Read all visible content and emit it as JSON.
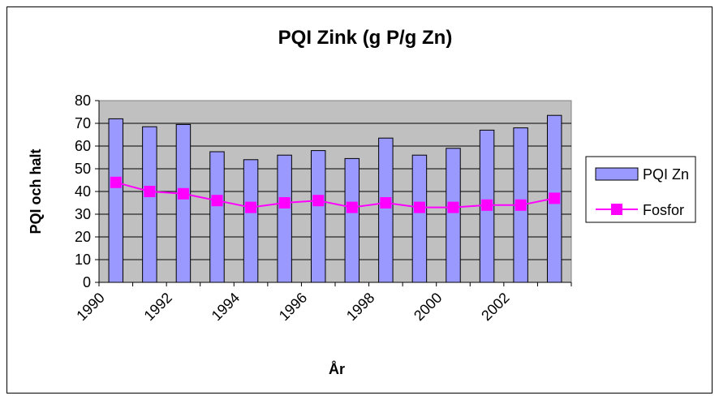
{
  "chart_data": {
    "type": "bar",
    "title": "PQI Zink (g P/g Zn)",
    "xlabel": "År",
    "ylabel": "PQI och halt",
    "ylim": [
      0,
      80
    ],
    "yticks": [
      0,
      10,
      20,
      30,
      40,
      50,
      60,
      70,
      80
    ],
    "x_tick_labels": [
      "1990",
      "1992",
      "1994",
      "1996",
      "1998",
      "2000",
      "2002"
    ],
    "categories": [
      "1990",
      "1991",
      "1992",
      "1993",
      "1994",
      "1995",
      "1996",
      "1997",
      "1998",
      "1999",
      "2000",
      "2001",
      "2002",
      "2003"
    ],
    "grid": true,
    "legend_position": "right",
    "series": [
      {
        "name": "PQI Zn",
        "type": "bar",
        "color": "#9999FF",
        "values": [
          72,
          68.5,
          69.5,
          57.5,
          54,
          56,
          58,
          54.5,
          63.5,
          56,
          59,
          67,
          68,
          73.5
        ]
      },
      {
        "name": "Fosfor",
        "type": "line",
        "color": "#FF00FF",
        "values": [
          44,
          40,
          39,
          36,
          33,
          35,
          36,
          33,
          35,
          33,
          33,
          34,
          34,
          37
        ]
      }
    ],
    "plot_background": "#C0C0C0"
  }
}
